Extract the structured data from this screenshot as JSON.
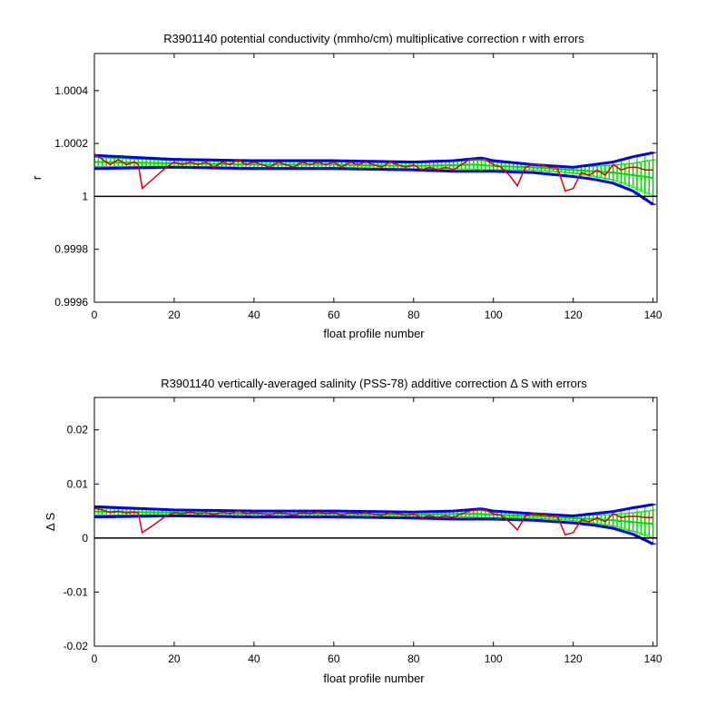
{
  "chart_data": [
    {
      "type": "line",
      "title": "R3901140 potential conductivity (mmho/cm) multiplicative correction r with errors",
      "xlabel": "float profile number",
      "ylabel": "r",
      "xlim": [
        0,
        141
      ],
      "ylim": [
        0.9996,
        1.00054
      ],
      "xticks": [
        0,
        20,
        40,
        60,
        80,
        100,
        120,
        140
      ],
      "xtick_labels": [
        "0",
        "20",
        "40",
        "60",
        "80",
        "100",
        "120",
        "140"
      ],
      "yticks": [
        0.9996,
        0.9998,
        1,
        1.0002,
        1.0004
      ],
      "ytick_labels": [
        "0.9996",
        "0.9998",
        "1",
        "1.0002",
        "1.0004"
      ],
      "reference_line": 1,
      "grid": false,
      "series": [
        {
          "role": "measured",
          "color": "#dd0000",
          "x": [
            0,
            2,
            4,
            6,
            8,
            10,
            11,
            12,
            15,
            18,
            20,
            22,
            24,
            26,
            28,
            30,
            32,
            34,
            36,
            38,
            40,
            42,
            44,
            46,
            48,
            50,
            52,
            54,
            56,
            58,
            60,
            62,
            64,
            66,
            68,
            70,
            72,
            74,
            76,
            78,
            80,
            82,
            84,
            86,
            88,
            90,
            92,
            94,
            96,
            98,
            100,
            102,
            104,
            106,
            108,
            110,
            112,
            114,
            116,
            118,
            120,
            122,
            124,
            126,
            128,
            130,
            132,
            134,
            136,
            138,
            140
          ],
          "y": [
            1.00016,
            1.00014,
            1.00012,
            1.00014,
            1.00012,
            1.00013,
            1.00012,
            1.00003,
            1.00007,
            1.00011,
            1.00013,
            1.00012,
            1.00013,
            1.00012,
            1.00013,
            1.00011,
            1.00013,
            1.00012,
            1.00014,
            1.00012,
            1.00013,
            1.00012,
            1.00011,
            1.00013,
            1.00012,
            1.00011,
            1.00013,
            1.00012,
            1.00013,
            1.00012,
            1.00013,
            1.00011,
            1.00013,
            1.00012,
            1.00013,
            1.00012,
            1.00011,
            1.00013,
            1.00012,
            1.00011,
            1.00012,
            1.0001,
            1.00011,
            1.0001,
            1.00011,
            1.0001,
            1.00012,
            1.00014,
            1.00014,
            1.00014,
            1.00012,
            1.00011,
            1.00008,
            1.00004,
            1.00011,
            1.00012,
            1.00012,
            1.00011,
            1.00011,
            1.00002,
            1.00003,
            1.00009,
            1.00008,
            1.0001,
            1.00008,
            1.00012,
            1.0001,
            1.00011,
            1.00011,
            1.0001,
            1.0001
          ]
        },
        {
          "role": "fit",
          "color": "#00dd00",
          "x": [
            0,
            20,
            40,
            60,
            80,
            95,
            100,
            110,
            120,
            130,
            140
          ],
          "y": [
            1.00013,
            1.000125,
            1.00012,
            1.00012,
            1.000115,
            1.00012,
            1.000115,
            1.00011,
            1.0001,
            1.00009,
            1.00007
          ]
        },
        {
          "role": "error-upper",
          "color": "#0000ee",
          "x": [
            0,
            20,
            40,
            60,
            80,
            90,
            97,
            100,
            110,
            120,
            125,
            130,
            135,
            140
          ],
          "y": [
            1.000155,
            1.00014,
            1.000135,
            1.000135,
            1.00013,
            1.000135,
            1.000145,
            1.000135,
            1.00012,
            1.00011,
            1.00012,
            1.00013,
            1.00015,
            1.000165
          ]
        },
        {
          "role": "error-lower",
          "color": "#0000ee",
          "x": [
            0,
            20,
            40,
            60,
            80,
            90,
            97,
            100,
            110,
            120,
            125,
            130,
            135,
            140
          ],
          "y": [
            1.000105,
            1.00011,
            1.000105,
            1.000105,
            1.0001,
            1.000095,
            1.000095,
            1.000095,
            1.00009,
            1.000075,
            1.000065,
            1.00005,
            1.00002,
            0.99997
          ]
        }
      ]
    },
    {
      "type": "line",
      "title": "R3901140 vertically-averaged salinity (PSS-78) additive correction Δ S with errors",
      "xlabel": "float profile number",
      "ylabel": "Δ S",
      "xlim": [
        0,
        141
      ],
      "ylim": [
        -0.02,
        0.026
      ],
      "xticks": [
        0,
        20,
        40,
        60,
        80,
        100,
        120,
        140
      ],
      "xtick_labels": [
        "0",
        "20",
        "40",
        "60",
        "80",
        "100",
        "120",
        "140"
      ],
      "yticks": [
        -0.02,
        -0.01,
        0,
        0.01,
        0.02
      ],
      "ytick_labels": [
        "-0.02",
        "-0.01",
        "0",
        "0.01",
        "0.02"
      ],
      "reference_line": 0,
      "grid": false,
      "series": [
        {
          "role": "measured",
          "color": "#dd0000",
          "x": [
            0,
            2,
            4,
            6,
            8,
            10,
            11,
            12,
            15,
            18,
            20,
            22,
            24,
            26,
            28,
            30,
            32,
            34,
            36,
            38,
            40,
            42,
            44,
            46,
            48,
            50,
            52,
            54,
            56,
            58,
            60,
            62,
            64,
            66,
            68,
            70,
            72,
            74,
            76,
            78,
            80,
            82,
            84,
            86,
            88,
            90,
            92,
            94,
            96,
            98,
            100,
            102,
            104,
            106,
            108,
            110,
            112,
            114,
            116,
            118,
            120,
            122,
            124,
            126,
            128,
            130,
            132,
            134,
            136,
            138,
            140
          ],
          "y": [
            0.0055,
            0.0052,
            0.0047,
            0.005,
            0.0046,
            0.0048,
            0.0046,
            0.001,
            0.0025,
            0.0041,
            0.0047,
            0.0045,
            0.0048,
            0.0045,
            0.0047,
            0.0043,
            0.0048,
            0.0045,
            0.005,
            0.0045,
            0.0047,
            0.0045,
            0.0043,
            0.0047,
            0.0045,
            0.0042,
            0.0047,
            0.0045,
            0.0048,
            0.0045,
            0.0047,
            0.0042,
            0.0047,
            0.0045,
            0.0047,
            0.0044,
            0.0042,
            0.0047,
            0.0045,
            0.0042,
            0.0044,
            0.0038,
            0.0041,
            0.0038,
            0.0041,
            0.0038,
            0.0045,
            0.005,
            0.0052,
            0.0052,
            0.0045,
            0.0042,
            0.003,
            0.0015,
            0.0041,
            0.0045,
            0.0045,
            0.0041,
            0.0041,
            0.0006,
            0.001,
            0.0034,
            0.003,
            0.0038,
            0.003,
            0.0045,
            0.0038,
            0.004,
            0.004,
            0.0038,
            0.0038
          ]
        },
        {
          "role": "fit",
          "color": "#00dd00",
          "x": [
            0,
            20,
            40,
            60,
            80,
            95,
            100,
            110,
            120,
            130,
            140
          ],
          "y": [
            0.0049,
            0.0047,
            0.0045,
            0.0045,
            0.0043,
            0.0045,
            0.0043,
            0.0041,
            0.0037,
            0.0033,
            0.0026
          ]
        },
        {
          "role": "error-upper",
          "color": "#0000ee",
          "x": [
            0,
            20,
            40,
            60,
            80,
            90,
            97,
            100,
            110,
            120,
            125,
            130,
            135,
            140
          ],
          "y": [
            0.0058,
            0.0052,
            0.005,
            0.005,
            0.0048,
            0.005,
            0.0054,
            0.005,
            0.0045,
            0.0041,
            0.0045,
            0.0049,
            0.0056,
            0.0062
          ]
        },
        {
          "role": "error-lower",
          "color": "#0000ee",
          "x": [
            0,
            20,
            40,
            60,
            80,
            90,
            97,
            100,
            110,
            120,
            125,
            130,
            135,
            140
          ],
          "y": [
            0.0039,
            0.0041,
            0.0039,
            0.0039,
            0.0037,
            0.0035,
            0.0035,
            0.0035,
            0.0033,
            0.0028,
            0.0024,
            0.0018,
            0.0007,
            -0.0011
          ]
        }
      ]
    }
  ]
}
